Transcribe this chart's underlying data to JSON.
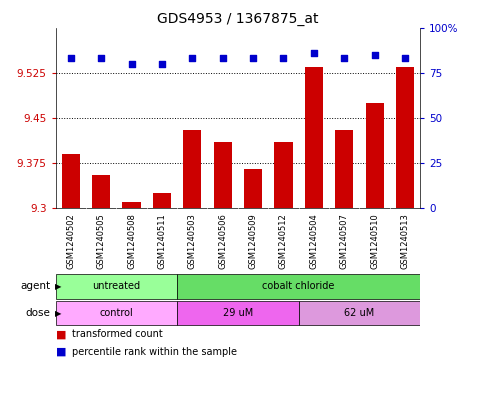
{
  "title": "GDS4953 / 1367875_at",
  "samples": [
    "GSM1240502",
    "GSM1240505",
    "GSM1240508",
    "GSM1240511",
    "GSM1240503",
    "GSM1240506",
    "GSM1240509",
    "GSM1240512",
    "GSM1240504",
    "GSM1240507",
    "GSM1240510",
    "GSM1240513"
  ],
  "bar_values": [
    9.39,
    9.355,
    9.31,
    9.325,
    9.43,
    9.41,
    9.365,
    9.41,
    9.535,
    9.43,
    9.475,
    9.535
  ],
  "percentile_values": [
    83,
    83,
    80,
    80,
    83,
    83,
    83,
    83,
    86,
    83,
    85,
    83
  ],
  "ylim_left": [
    9.3,
    9.6
  ],
  "ylim_right": [
    0,
    100
  ],
  "yticks_left": [
    9.3,
    9.375,
    9.45,
    9.525
  ],
  "yticks_right": [
    0,
    25,
    50,
    75,
    100
  ],
  "ytick_labels_right": [
    "0",
    "25",
    "50",
    "75",
    "100%"
  ],
  "bar_color": "#cc0000",
  "percentile_color": "#0000cc",
  "agent_groups": [
    {
      "label": "untreated",
      "start": 0,
      "end": 4,
      "color": "#99ff99"
    },
    {
      "label": "cobalt chloride",
      "start": 4,
      "end": 12,
      "color": "#66dd66"
    }
  ],
  "dose_groups": [
    {
      "label": "control",
      "start": 0,
      "end": 4,
      "color": "#ffaaff"
    },
    {
      "label": "29 uM",
      "start": 4,
      "end": 8,
      "color": "#ee66ee"
    },
    {
      "label": "62 uM",
      "start": 8,
      "end": 12,
      "color": "#dd99dd"
    }
  ],
  "legend_bar_label": "transformed count",
  "legend_pct_label": "percentile rank within the sample",
  "label_agent": "agent",
  "label_dose": "dose",
  "background_color": "#ffffff",
  "sample_bg_color": "#cccccc",
  "title_fontsize": 10,
  "tick_fontsize": 7.5,
  "sample_fontsize": 6,
  "bar_width": 0.6
}
